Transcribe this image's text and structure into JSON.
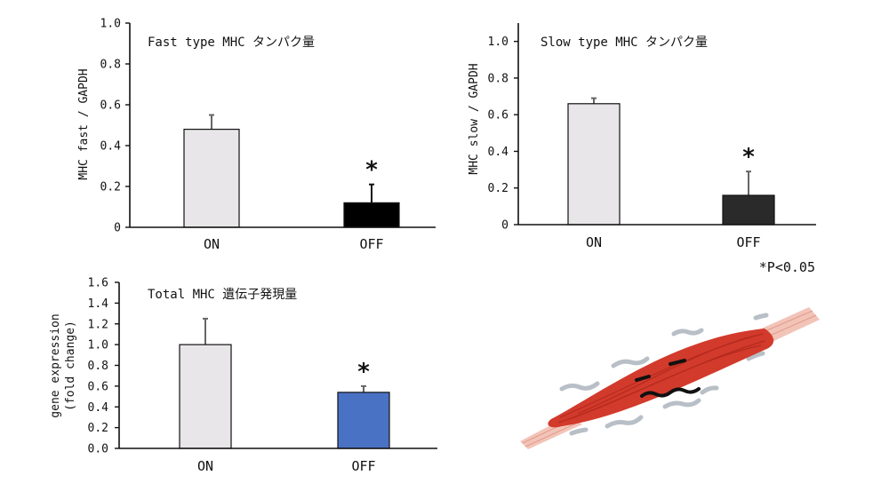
{
  "chart_data": [
    {
      "type": "bar",
      "title": "Fast type MHC タンパク量",
      "ylabel": "MHC fast / GAPDH",
      "xlabel": "",
      "categories": [
        "ON",
        "OFF"
      ],
      "values": [
        0.48,
        0.12
      ],
      "errors": [
        0.07,
        0.09
      ],
      "ylim": [
        0,
        1.0
      ],
      "yticks": [
        "0",
        "0.2",
        "0.4",
        "0.6",
        "0.8",
        "1.0"
      ],
      "bar_colors": [
        "#e8e6e8",
        "#000000"
      ],
      "significance": [
        "",
        "*"
      ],
      "grid": false,
      "legend": "none"
    },
    {
      "type": "bar",
      "title": "Slow type MHC タンパク量",
      "ylabel": "MHC slow / GAPDH",
      "xlabel": "",
      "categories": [
        "ON",
        "OFF"
      ],
      "values": [
        0.66,
        0.16
      ],
      "errors": [
        0.03,
        0.13
      ],
      "ylim": [
        0,
        1.1
      ],
      "yticks": [
        "0",
        "0.2",
        "0.4",
        "0.6",
        "0.8",
        "1.0"
      ],
      "bar_colors": [
        "#e8e6e8",
        "#2a2a2a"
      ],
      "significance": [
        "",
        "*"
      ],
      "grid": false,
      "legend": "none"
    },
    {
      "type": "bar",
      "title": "Total MHC 遺伝子発現量",
      "ylabel": [
        "gene expression",
        "(fold change)"
      ],
      "xlabel": "",
      "categories": [
        "ON",
        "OFF"
      ],
      "values": [
        1.0,
        0.54
      ],
      "errors": [
        0.25,
        0.06
      ],
      "ylim": [
        0,
        1.6
      ],
      "yticks": [
        "0.0",
        "0.2",
        "0.4",
        "0.6",
        "0.8",
        "1.0",
        "1.2",
        "1.4",
        "1.6"
      ],
      "bar_colors": [
        "#e8e6e8",
        "#4a72c4"
      ],
      "significance": [
        "",
        "*"
      ],
      "grid": false,
      "legend": "none"
    }
  ],
  "footnote": "*P<0.05",
  "illustration": {
    "icon": "muscle-fiber-illustration",
    "muscle_color": "#d23a2c",
    "tendon_color": "#f2c4b8",
    "motion_line_color": "#b8bfc6"
  }
}
